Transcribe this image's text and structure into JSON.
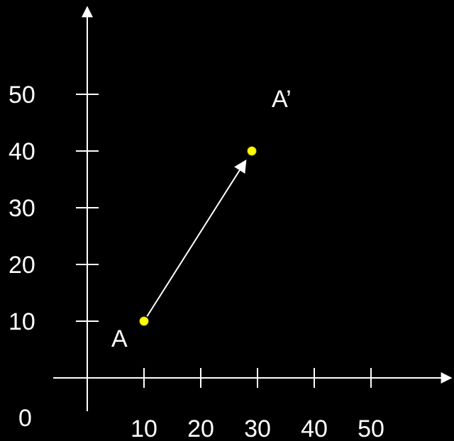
{
  "origin_label": "0",
  "x_ticks": [
    {
      "value": 10,
      "label": "10"
    },
    {
      "value": 20,
      "label": "20"
    },
    {
      "value": 30,
      "label": "30"
    },
    {
      "value": 40,
      "label": "40"
    },
    {
      "value": 50,
      "label": "50"
    }
  ],
  "y_ticks": [
    {
      "value": 10,
      "label": "10"
    },
    {
      "value": 20,
      "label": "20"
    },
    {
      "value": 30,
      "label": "30"
    },
    {
      "value": 40,
      "label": "40"
    },
    {
      "value": 50,
      "label": "50"
    }
  ],
  "points": [
    {
      "id": "A",
      "label": "A",
      "x": 10,
      "y": 10
    },
    {
      "id": "A-prime",
      "label": "A’",
      "x": 29,
      "y": 40
    }
  ],
  "vector": {
    "from": "A",
    "to": "A-prime"
  },
  "colors": {
    "background": "#000000",
    "axes": "#ffffff",
    "point_fill": "#ffff00",
    "point_stroke": "#c8c800",
    "arrow": "#ffffff",
    "text": "#ffffff"
  }
}
